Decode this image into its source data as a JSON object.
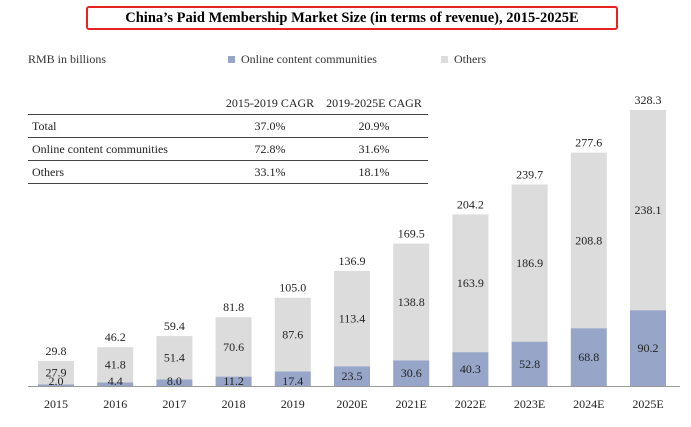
{
  "header": {
    "title": "China’s Paid Membership Market Size (in terms of revenue), 2015-2025E"
  },
  "unit_label": "RMB in billions",
  "legend": {
    "online": "Online content communities",
    "others": "Others"
  },
  "colors": {
    "online": "#97a6c8",
    "others": "#dcdcdc",
    "title_border": "#e8231f"
  },
  "cagr_table": {
    "headers": [
      "",
      "2015-2019 CAGR",
      "2019-2025E CAGR"
    ],
    "rows": [
      [
        "Total",
        "37.0%",
        "20.9%"
      ],
      [
        "Online content communities",
        "72.8%",
        "31.6%"
      ],
      [
        "Others",
        "33.1%",
        "18.1%"
      ]
    ]
  },
  "chart_data": {
    "type": "bar",
    "stacked": true,
    "title": "China’s Paid Membership Market Size (in terms of revenue), 2015-2025E",
    "ylabel": "RMB in billions",
    "categories": [
      "2015",
      "2016",
      "2017",
      "2018",
      "2019",
      "2020E",
      "2021E",
      "2022E",
      "2023E",
      "2024E",
      "2025E"
    ],
    "series": [
      {
        "name": "Online content communities",
        "values": [
          2.0,
          4.4,
          8.0,
          11.2,
          17.4,
          23.5,
          30.6,
          40.3,
          52.8,
          68.8,
          90.2
        ]
      },
      {
        "name": "Others",
        "values": [
          27.9,
          41.8,
          51.4,
          70.6,
          87.6,
          113.4,
          138.8,
          163.9,
          186.9,
          208.8,
          238.1
        ]
      }
    ],
    "totals": [
      "29.8",
      "46.2",
      "59.4",
      "81.8",
      "105.0",
      "136.9",
      "169.5",
      "204.2",
      "239.7",
      "277.6",
      "328.3"
    ],
    "online_labels": [
      "2.0",
      "4.4",
      "8.0",
      "11.2",
      "17.4",
      "23.5",
      "30.6",
      "40.3",
      "52.8",
      "68.8",
      "90.2"
    ],
    "others_labels": [
      "27.9",
      "41.8",
      "51.4",
      "70.6",
      "87.6",
      "113.4",
      "138.8",
      "163.9",
      "186.9",
      "208.8",
      "238.1"
    ],
    "ylim": [
      0,
      328.3
    ],
    "grid": false,
    "legend_position": "top"
  }
}
